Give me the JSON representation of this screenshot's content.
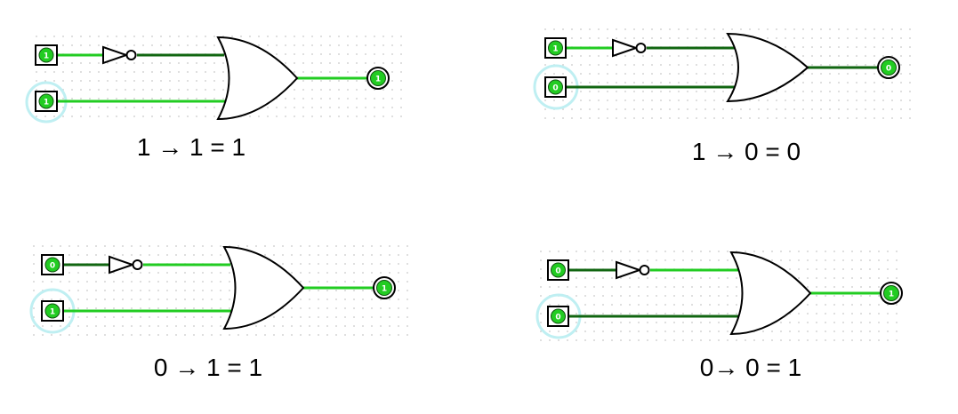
{
  "colors": {
    "wire_on": "#22cc22",
    "wire_off": "#116611",
    "pin_fill": "#22cc22",
    "grid_dot": "#c8c8c8",
    "selection_ring": "#bfeff2",
    "gate_stroke": "#000000",
    "gate_fill": "#ffffff"
  },
  "circuits": [
    {
      "a": "1",
      "b": "1",
      "out": "1",
      "caption": "1 → 1 = 1"
    },
    {
      "a": "1",
      "b": "0",
      "out": "0",
      "caption": "1 → 0 = 0"
    },
    {
      "a": "0",
      "b": "1",
      "out": "1",
      "caption": "0 → 1 = 1"
    },
    {
      "a": "0",
      "b": "0",
      "out": "1",
      "caption": "0→ 0 = 1"
    }
  ]
}
